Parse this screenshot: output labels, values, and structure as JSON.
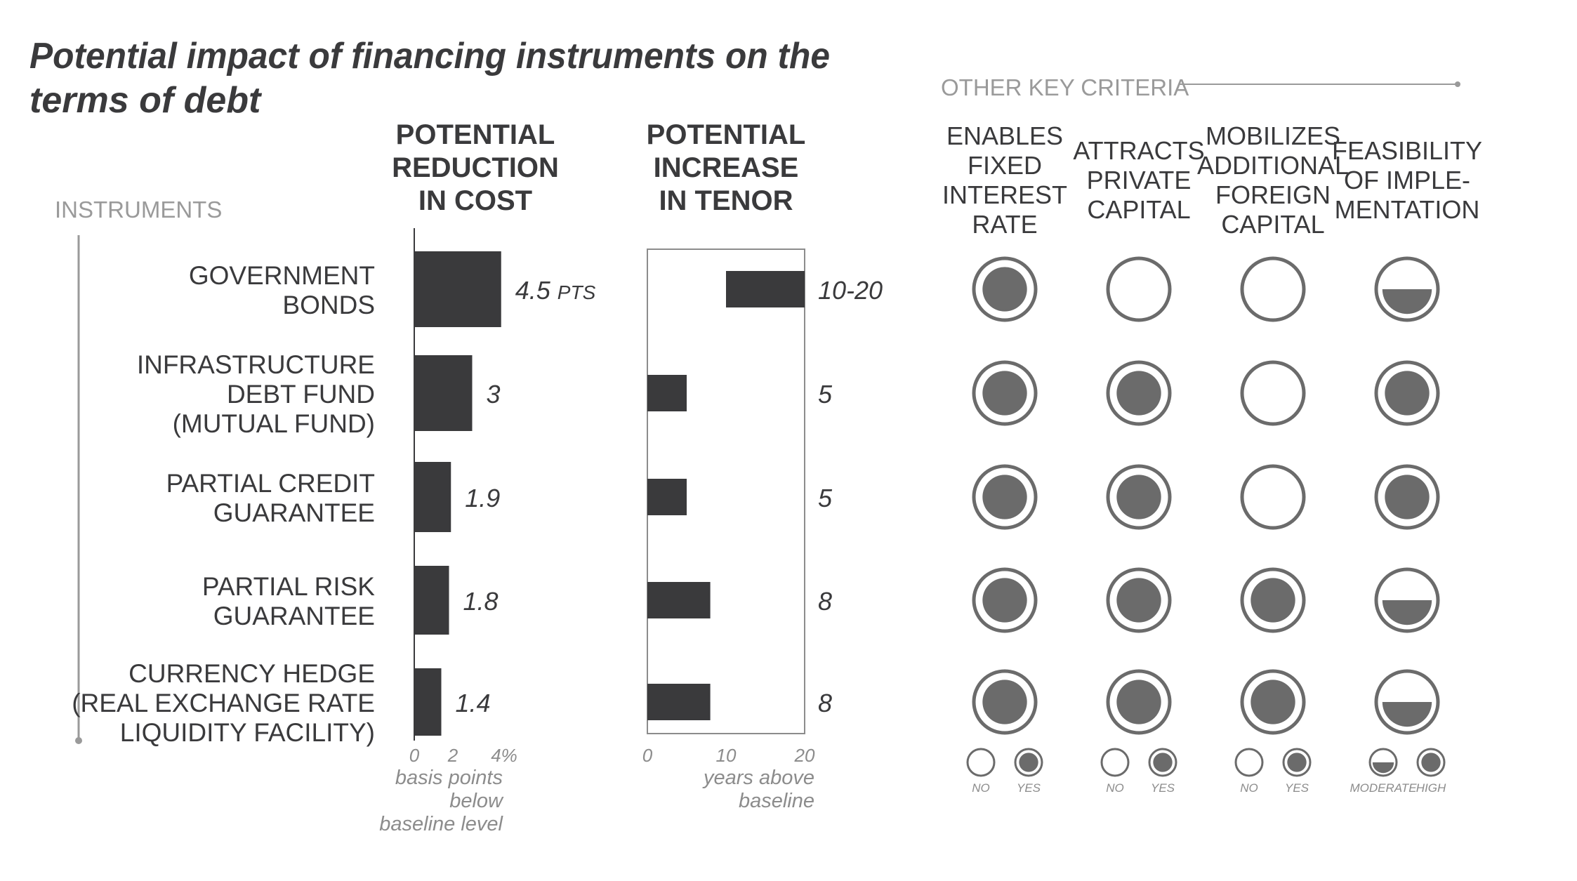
{
  "title_line1": "Potential impact of financing instruments on the",
  "title_line2": "terms of debt",
  "instruments_label": "INSTRUMENTS",
  "other_key_criteria_label": "OTHER KEY CRITERIA",
  "instruments": [
    [
      "GOVERNMENT",
      "BONDS"
    ],
    [
      "INFRASTRUCTURE",
      "DEBT FUND",
      "(MUTUAL FUND)"
    ],
    [
      "PARTIAL CREDIT",
      "GUARANTEE"
    ],
    [
      "PARTIAL RISK",
      "GUARANTEE"
    ],
    [
      "CURRENCY HEDGE",
      "(REAL EXCHANGE RATE",
      "LIQUIDITY FACILITY)"
    ]
  ],
  "chart_data": [
    {
      "type": "bar",
      "orientation": "horizontal",
      "title": [
        "POTENTIAL",
        "REDUCTION",
        "IN COST"
      ],
      "categories": [
        "GOVERNMENT BONDS",
        "INFRASTRUCTURE DEBT FUND (MUTUAL FUND)",
        "PARTIAL CREDIT GUARANTEE",
        "PARTIAL RISK GUARANTEE",
        "CURRENCY HEDGE (REAL EXCHANGE RATE LIQUIDITY FACILITY)"
      ],
      "values": [
        4.5,
        3,
        1.9,
        1.8,
        1.4
      ],
      "data_labels": [
        "4.5",
        "3",
        "1.9",
        "1.8",
        "1.4"
      ],
      "data_label_unit": "PTS",
      "xlim": [
        0,
        4
      ],
      "xticks": [
        "0",
        "2",
        "4%"
      ],
      "xlabel": [
        "basis points",
        "below",
        "baseline level"
      ],
      "grid": false,
      "color": "#3a3a3c"
    },
    {
      "type": "bar",
      "orientation": "horizontal",
      "title": [
        "POTENTIAL",
        "INCREASE",
        "IN TENOR"
      ],
      "categories": [
        "GOVERNMENT BONDS",
        "INFRASTRUCTURE DEBT FUND (MUTUAL FUND)",
        "PARTIAL CREDIT GUARANTEE",
        "PARTIAL RISK GUARANTEE",
        "CURRENCY HEDGE (REAL EXCHANGE RATE LIQUIDITY FACILITY)"
      ],
      "ranges": [
        [
          10,
          20
        ],
        [
          0,
          5
        ],
        [
          0,
          5
        ],
        [
          0,
          8
        ],
        [
          0,
          8
        ]
      ],
      "data_labels": [
        "10-20",
        "5",
        "5",
        "8",
        "8"
      ],
      "xlim": [
        0,
        20
      ],
      "xticks": [
        "0",
        "10",
        "20"
      ],
      "xlabel": [
        "years above",
        "baseline"
      ],
      "grid": false,
      "color": "#3a3a3c"
    },
    {
      "type": "table",
      "columns": [
        {
          "header": [
            "ENABLES",
            "FIXED",
            "INTEREST",
            "RATE"
          ],
          "values": [
            "yes",
            "yes",
            "yes",
            "yes",
            "yes"
          ]
        },
        {
          "header": [
            "ATTRACTS",
            "PRIVATE",
            "CAPITAL"
          ],
          "values": [
            "no",
            "yes",
            "yes",
            "yes",
            "yes"
          ]
        },
        {
          "header": [
            "MOBILIZES",
            "ADDITIONAL",
            "FOREIGN",
            "CAPITAL"
          ],
          "values": [
            "no",
            "no",
            "no",
            "yes",
            "yes"
          ]
        },
        {
          "header": [
            "FEASIBILITY",
            "OF IMPLE-",
            "MENTATION"
          ],
          "values": [
            "moderate",
            "high",
            "high",
            "moderate",
            "moderate"
          ]
        }
      ],
      "legend": [
        [
          {
            "symbol": "no",
            "label": "NO"
          },
          {
            "symbol": "yes",
            "label": "YES"
          }
        ],
        [
          {
            "symbol": "no",
            "label": "NO"
          },
          {
            "symbol": "yes",
            "label": "YES"
          }
        ],
        [
          {
            "symbol": "no",
            "label": "NO"
          },
          {
            "symbol": "yes",
            "label": "YES"
          }
        ],
        [
          {
            "symbol": "moderate",
            "label": "MODERATE"
          },
          {
            "symbol": "high",
            "label": "HIGH"
          }
        ]
      ]
    }
  ],
  "colors": {
    "bar": "#3a3a3c",
    "ink": "#3a3a3c",
    "circle_stroke": "#6b6b6b",
    "circle_fill": "#6b6b6b",
    "muted": "#8c8c8c",
    "light": "#9a9a9a"
  }
}
